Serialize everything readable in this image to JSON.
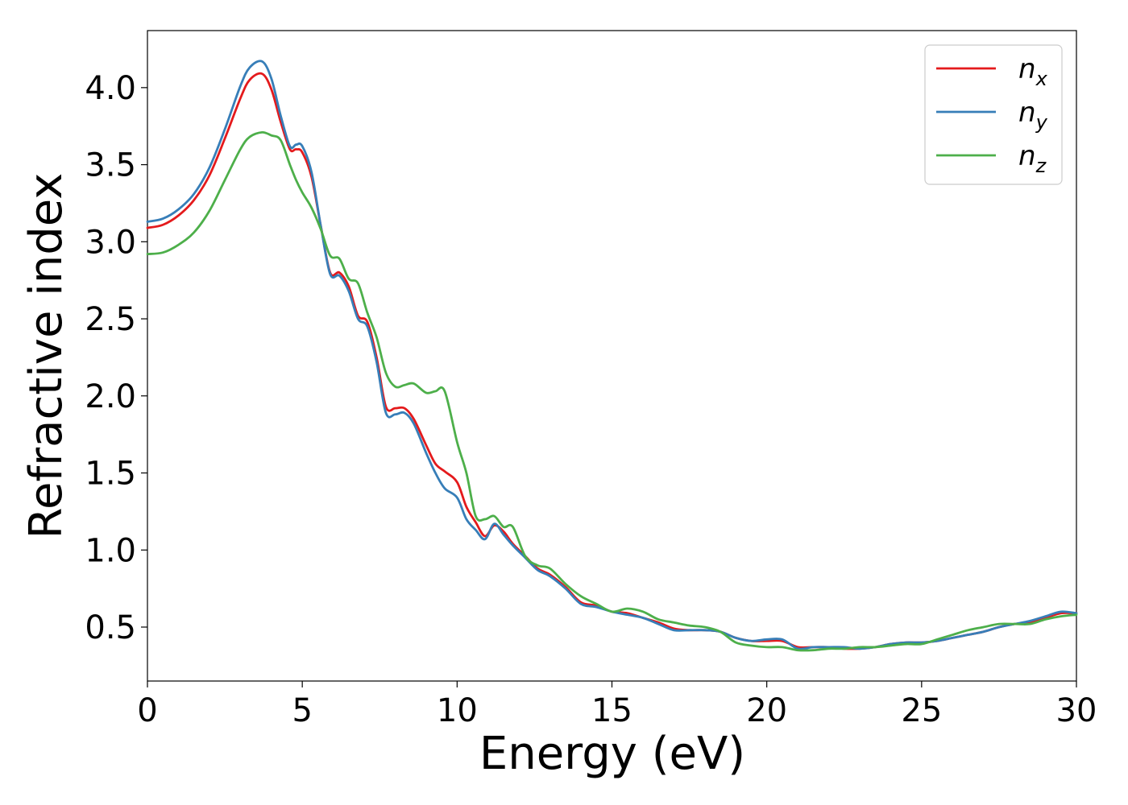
{
  "chart_data": {
    "type": "line",
    "xlabel": "Energy (eV)",
    "ylabel": "Refractive index",
    "xlim": [
      0,
      30
    ],
    "ylim": [
      0.15,
      4.37
    ],
    "xticks": [
      0,
      5,
      10,
      15,
      20,
      25,
      30
    ],
    "yticks": [
      0.5,
      1.0,
      1.5,
      2.0,
      2.5,
      3.0,
      3.5,
      4.0
    ],
    "ytick_labels": [
      "0.5",
      "1.0",
      "1.5",
      "2.0",
      "2.5",
      "3.0",
      "3.5",
      "4.0"
    ],
    "grid": false,
    "legend": "top-right",
    "x": [
      0,
      0.5,
      1,
      1.5,
      2,
      2.5,
      3,
      3.3,
      3.7,
      4,
      4.3,
      4.6,
      4.8,
      5,
      5.3,
      5.6,
      5.9,
      6.2,
      6.5,
      6.8,
      7.1,
      7.4,
      7.7,
      8,
      8.3,
      8.6,
      9,
      9.3,
      9.6,
      10,
      10.3,
      10.6,
      10.9,
      11.2,
      11.5,
      11.8,
      12.2,
      12.6,
      13,
      13.5,
      14,
      14.5,
      15,
      15.5,
      16,
      16.5,
      17,
      17.5,
      18,
      18.5,
      19,
      19.5,
      20,
      20.5,
      21,
      21.5,
      22,
      22.5,
      23,
      23.5,
      24,
      24.5,
      25,
      25.5,
      26,
      26.5,
      27,
      27.5,
      28,
      28.5,
      29,
      29.5,
      30
    ],
    "series": [
      {
        "name": "n_x",
        "label": "n",
        "sub": "x",
        "color": "#e41a1c",
        "values": [
          3.09,
          3.11,
          3.17,
          3.27,
          3.43,
          3.67,
          3.93,
          4.05,
          4.09,
          3.99,
          3.78,
          3.6,
          3.6,
          3.58,
          3.42,
          3.1,
          2.8,
          2.8,
          2.71,
          2.52,
          2.48,
          2.25,
          1.93,
          1.92,
          1.92,
          1.85,
          1.68,
          1.56,
          1.51,
          1.44,
          1.28,
          1.18,
          1.09,
          1.16,
          1.12,
          1.04,
          0.96,
          0.88,
          0.84,
          0.76,
          0.66,
          0.64,
          0.6,
          0.59,
          0.56,
          0.53,
          0.49,
          0.48,
          0.48,
          0.47,
          0.43,
          0.41,
          0.41,
          0.41,
          0.37,
          0.37,
          0.37,
          0.36,
          0.36,
          0.37,
          0.39,
          0.4,
          0.4,
          0.41,
          0.43,
          0.45,
          0.47,
          0.5,
          0.52,
          0.53,
          0.56,
          0.59,
          0.59
        ]
      },
      {
        "name": "n_y",
        "label": "n",
        "sub": "y",
        "color": "#377eb8",
        "values": [
          3.13,
          3.15,
          3.21,
          3.31,
          3.48,
          3.73,
          4.01,
          4.13,
          4.17,
          4.06,
          3.82,
          3.62,
          3.63,
          3.62,
          3.45,
          3.1,
          2.79,
          2.78,
          2.68,
          2.5,
          2.45,
          2.22,
          1.89,
          1.88,
          1.89,
          1.82,
          1.63,
          1.5,
          1.4,
          1.34,
          1.2,
          1.13,
          1.07,
          1.17,
          1.1,
          1.03,
          0.95,
          0.87,
          0.83,
          0.75,
          0.65,
          0.63,
          0.6,
          0.58,
          0.56,
          0.52,
          0.48,
          0.48,
          0.48,
          0.47,
          0.43,
          0.41,
          0.42,
          0.42,
          0.36,
          0.37,
          0.37,
          0.37,
          0.36,
          0.37,
          0.39,
          0.4,
          0.4,
          0.41,
          0.43,
          0.45,
          0.47,
          0.5,
          0.52,
          0.54,
          0.57,
          0.6,
          0.59
        ]
      },
      {
        "name": "n_z",
        "label": "n",
        "sub": "z",
        "color": "#4daf4a",
        "values": [
          2.92,
          2.93,
          2.98,
          3.06,
          3.2,
          3.4,
          3.6,
          3.68,
          3.71,
          3.69,
          3.66,
          3.5,
          3.4,
          3.32,
          3.22,
          3.08,
          2.91,
          2.89,
          2.76,
          2.73,
          2.54,
          2.38,
          2.15,
          2.06,
          2.07,
          2.08,
          2.02,
          2.03,
          2.03,
          1.7,
          1.5,
          1.22,
          1.2,
          1.22,
          1.15,
          1.15,
          0.96,
          0.9,
          0.88,
          0.78,
          0.7,
          0.65,
          0.6,
          0.62,
          0.6,
          0.55,
          0.53,
          0.51,
          0.5,
          0.47,
          0.4,
          0.38,
          0.37,
          0.37,
          0.35,
          0.35,
          0.36,
          0.36,
          0.37,
          0.37,
          0.38,
          0.39,
          0.39,
          0.42,
          0.45,
          0.48,
          0.5,
          0.52,
          0.52,
          0.52,
          0.55,
          0.57,
          0.58
        ]
      }
    ]
  }
}
